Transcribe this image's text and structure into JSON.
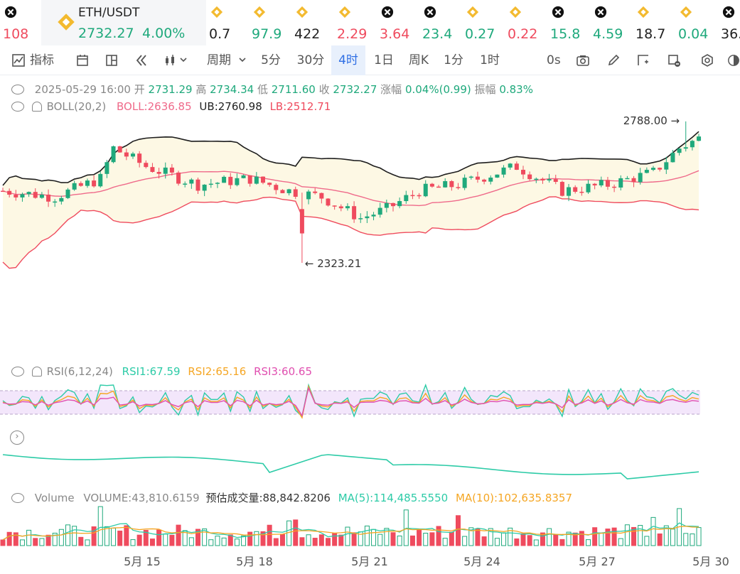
{
  "colors": {
    "up": "#1fa97c",
    "down": "#ef4b5e",
    "ma": "#1d1d1d",
    "boll_mid": "#ef6a8a",
    "boll_lb": "#ef4b5e",
    "rsi1": "#2dcba7",
    "rsi2": "#f5a623",
    "rsi3": "#e04fb0",
    "accent": "#2f6fe4"
  },
  "ticker": {
    "featured": {
      "pair": "ETH/USDT",
      "price": "2732.27",
      "change": "4.00%",
      "icon": "binance-icon"
    },
    "items": [
      {
        "value": "108",
        "trend": "down",
        "icon": "x-coin-icon"
      },
      {
        "value": "0.7",
        "trend": "flat",
        "icon": "binance-icon"
      },
      {
        "value": "97.9",
        "trend": "up",
        "icon": "binance-icon"
      },
      {
        "value": "422",
        "trend": "flat",
        "icon": "binance-icon"
      },
      {
        "value": "2.29",
        "trend": "down",
        "icon": "binance-icon"
      },
      {
        "value": "3.64",
        "trend": "down",
        "icon": "x-coin-icon"
      },
      {
        "value": "23.4",
        "trend": "up",
        "icon": "x-coin-icon"
      },
      {
        "value": "0.27",
        "trend": "up",
        "icon": "binance-icon"
      },
      {
        "value": "0.22",
        "trend": "down",
        "icon": "binance-icon"
      },
      {
        "value": "15.8",
        "trend": "up",
        "icon": "x-coin-icon"
      },
      {
        "value": "4.59",
        "trend": "up",
        "icon": "x-coin-icon"
      },
      {
        "value": "18.7",
        "trend": "flat",
        "icon": "binance-icon"
      },
      {
        "value": "0.04",
        "trend": "up",
        "icon": "binance-icon"
      },
      {
        "value": "36.",
        "trend": "flat",
        "icon": "x-coin-icon"
      }
    ]
  },
  "toolbar": {
    "indicator_label": "指标",
    "period_label": "周期",
    "intervals": [
      "5分",
      "30分",
      "4时",
      "1日",
      "周K",
      "1分",
      "1时"
    ],
    "active_interval": "4时",
    "time_label": "0s"
  },
  "ohlc": {
    "date": "2025-05-29 16:00",
    "open_label": "开",
    "open": "2731.29",
    "high_label": "高",
    "high": "2734.34",
    "low_label": "低",
    "low": "2711.60",
    "close_label": "收",
    "close": "2732.27",
    "change_label": "涨幅",
    "change": "0.04%(0.99)",
    "amplitude_label": "振幅",
    "amplitude": "0.83%"
  },
  "boll": {
    "name": "BOLL(20,2)",
    "mid_label": "BOLL:2636.85",
    "ub_label": "UB:2760.98",
    "lb_label": "LB:2512.71"
  },
  "rsi": {
    "name": "RSI(6,12,24)",
    "rsi1_label": "RSI1:67.59",
    "rsi2_label": "RSI2:65.16",
    "rsi3_label": "RSI3:60.65"
  },
  "volume": {
    "name": "Volume",
    "volume_label": "VOLUME:43,810.6159",
    "est_label": "预估成交量:88,842.8206",
    "ma5_label": "MA(5):114,485.5550",
    "ma10_label": "MA(10):102,635.8357"
  },
  "annotations": {
    "high": "2788.00",
    "low": "2323.21"
  },
  "x_axis": [
    "5月 15",
    "5月 18",
    "5月 21",
    "5月 24",
    "5月 27",
    "5月 30"
  ]
}
